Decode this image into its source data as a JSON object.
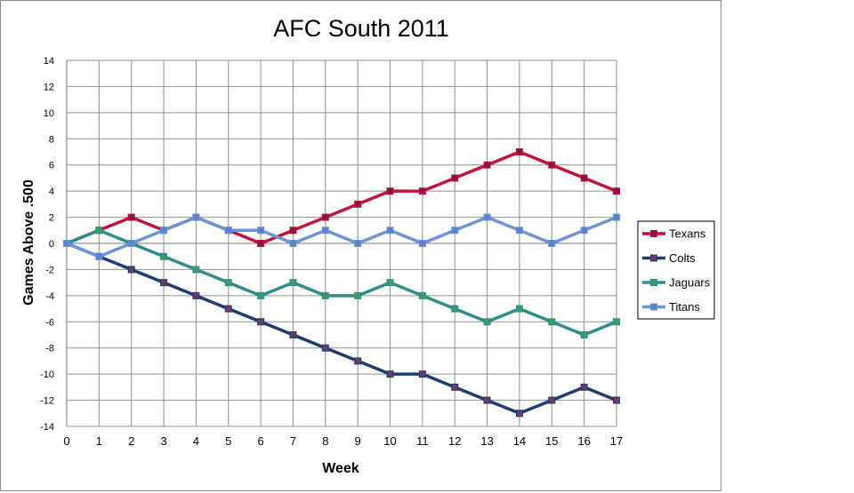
{
  "chart_data": {
    "type": "line",
    "title": "AFC South 2011",
    "xlabel": "Week",
    "ylabel": "Games Above .500",
    "x": [
      0,
      1,
      2,
      3,
      4,
      5,
      6,
      7,
      8,
      9,
      10,
      11,
      12,
      13,
      14,
      15,
      16,
      17
    ],
    "ylim": [
      -14,
      14
    ],
    "ystep": 2,
    "grid": true,
    "legend_position": "right",
    "series": [
      {
        "name": "Texans",
        "color": "#c0143c",
        "marker_color": "#8a1540",
        "values": [
          0,
          1,
          2,
          1,
          2,
          1,
          0,
          1,
          2,
          3,
          4,
          4,
          5,
          6,
          7,
          6,
          5,
          4
        ]
      },
      {
        "name": "Colts",
        "color": "#1f3c6e",
        "marker_color": "#6a3a6a",
        "values": [
          0,
          -1,
          -2,
          -3,
          -4,
          -5,
          -6,
          -7,
          -8,
          -9,
          -10,
          -10,
          -11,
          -12,
          -13,
          -12,
          -11,
          -12
        ]
      },
      {
        "name": "Jaguars",
        "color": "#2e8c8c",
        "marker_color": "#3a9a6a",
        "values": [
          0,
          1,
          0,
          -1,
          -2,
          -3,
          -4,
          -3,
          -4,
          -4,
          -3,
          -4,
          -5,
          -6,
          -5,
          -6,
          -7,
          -6
        ]
      },
      {
        "name": "Titans",
        "color": "#6e94d6",
        "marker_color": "#5a82d0",
        "values": [
          0,
          -1,
          0,
          1,
          2,
          1,
          1,
          0,
          1,
          0,
          1,
          0,
          1,
          2,
          1,
          0,
          1,
          2
        ]
      }
    ]
  }
}
